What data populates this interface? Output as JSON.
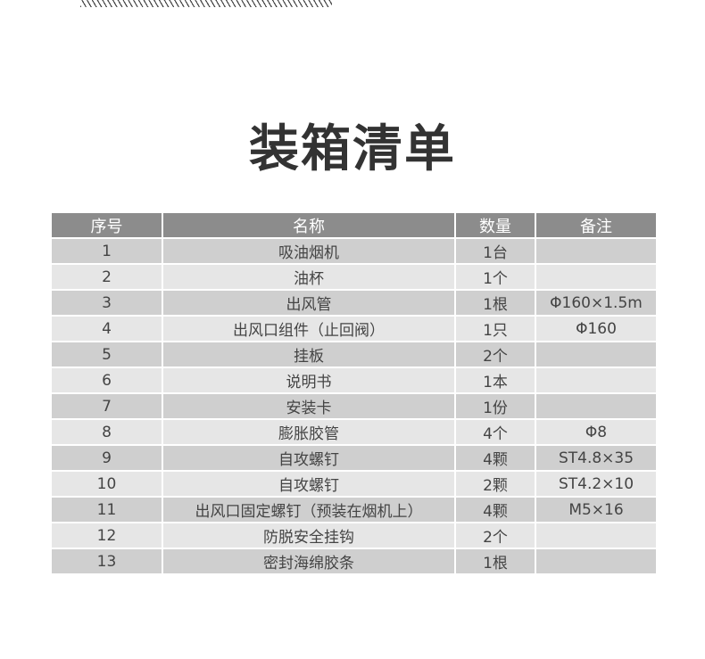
{
  "title": "装箱清单",
  "table": {
    "headers": [
      "序号",
      "名称",
      "数量",
      "备注"
    ],
    "rows": [
      [
        "1",
        "吸油烟机",
        "1台",
        ""
      ],
      [
        "2",
        "油杯",
        "1个",
        ""
      ],
      [
        "3",
        "出风管",
        "1根",
        "Φ160×1.5m"
      ],
      [
        "4",
        "出风口组件（止回阀）",
        "1只",
        "Φ160"
      ],
      [
        "5",
        "挂板",
        "2个",
        ""
      ],
      [
        "6",
        "说明书",
        "1本",
        ""
      ],
      [
        "7",
        "安装卡",
        "1份",
        ""
      ],
      [
        "8",
        "膨胀胶管",
        "4个",
        "Φ8"
      ],
      [
        "9",
        "自攻螺钉",
        "4颗",
        "ST4.8×35"
      ],
      [
        "10",
        "自攻螺钉",
        "2颗",
        "ST4.2×10"
      ],
      [
        "11",
        "出风口固定螺钉（预装在烟机上）",
        "4颗",
        "M5×16"
      ],
      [
        "12",
        "防脱安全挂钩",
        "2个",
        ""
      ],
      [
        "13",
        "密封海绵胶条",
        "1根",
        ""
      ]
    ]
  }
}
